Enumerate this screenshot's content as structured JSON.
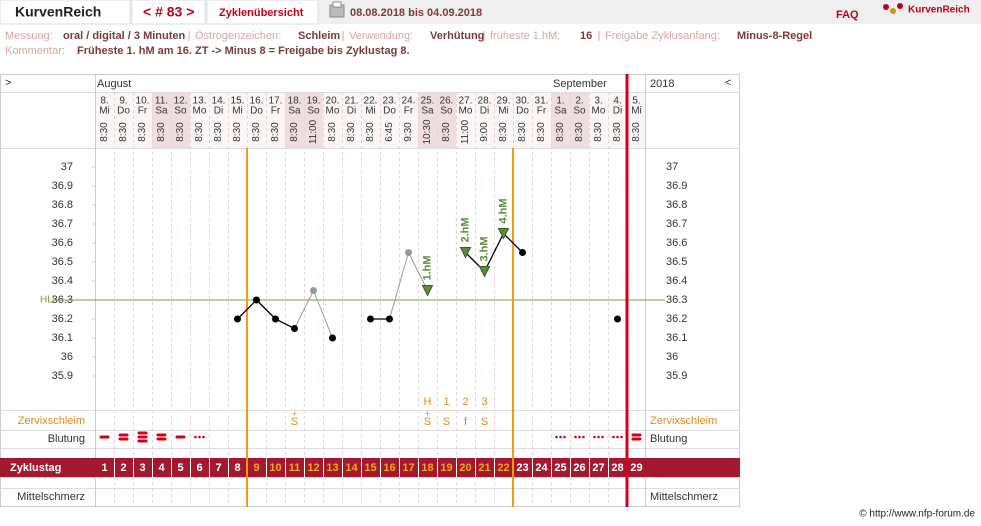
{
  "header": {
    "brand": "KurvenReich",
    "cycle_nav": "< # 83 >",
    "overview": "Zyklenübersicht",
    "date_range": "08.08.2018 bis 04.09.2018",
    "faq": "FAQ",
    "logo": "KurvenReich"
  },
  "info": {
    "fields": [
      {
        "label": "Messung:",
        "value": "oral / digital / 3 Minuten"
      },
      {
        "label": "Östrogenzeichen:",
        "value": "Schleim"
      },
      {
        "label": "Verwendung:",
        "value": "Verhütung"
      },
      {
        "label": "früheste 1.hM:",
        "value": "16"
      },
      {
        "label": "Freigabe Zyklusanfang:",
        "value": "Minus-8-Regel"
      }
    ],
    "comment": {
      "label": "Kommentar:",
      "value": "Früheste 1. hM am 16. ZT -> Minus 8 = Freigabe bis Zyklustag 8."
    }
  },
  "chart_data": {
    "type": "line",
    "scroll_left": ">",
    "scroll_right": "<",
    "year": "2018",
    "month_labels": [
      "August",
      null,
      null,
      null,
      null,
      null,
      null,
      null,
      null,
      null,
      null,
      null,
      null,
      null,
      null,
      null,
      null,
      null,
      null,
      null,
      null,
      null,
      null,
      null,
      "September",
      null,
      null,
      null,
      null
    ],
    "days": [
      "8.",
      "9.",
      "10.",
      "11.",
      "12.",
      "13.",
      "14.",
      "15.",
      "16.",
      "17.",
      "18.",
      "19.",
      "20.",
      "21.",
      "22.",
      "23.",
      "24.",
      "25.",
      "26.",
      "27.",
      "28.",
      "29.",
      "30.",
      "31.",
      "1.",
      "2.",
      "3.",
      "4.",
      "5."
    ],
    "weekdays": [
      "Mi",
      "Do",
      "Fr",
      "Sa",
      "So",
      "Mo",
      "Di",
      "Mi",
      "Do",
      "Fr",
      "Sa",
      "So",
      "Mo",
      "Di",
      "Mi",
      "Do",
      "Fr",
      "Sa",
      "So",
      "Mo",
      "Di",
      "Mi",
      "Do",
      "Fr",
      "Sa",
      "So",
      "Mo",
      "Di",
      "Mi"
    ],
    "times": [
      "8:30",
      "8:30",
      "8:30",
      "8:30",
      "8:30",
      "8:30",
      "8:30",
      "8:30",
      "8:30",
      "8:30",
      "8:30",
      "11:00",
      "8:30",
      "8:30",
      "8:30",
      "6:45",
      "9:30",
      "10:30",
      "8:30",
      "11:00",
      "9:00",
      "8:30",
      "8:30",
      "8:30",
      "8:30",
      "8:30",
      "8:30",
      "8:30",
      "8:30"
    ],
    "header_colors": [
      "#fbf5f5",
      "#fbf5f5",
      "#fbf5f5",
      "#f0dede",
      "#f0dede",
      "#fbf5f5",
      "#fbf5f5",
      "#fbf5f5",
      "#fbf5f5",
      "#fbf5f5",
      "#f0dede",
      "#f0dede",
      "#fbf5f5",
      "#fbf5f5",
      "#fbf5f5",
      "#fbf5f5",
      "#fbf5f5",
      "#f0dede",
      "#f0dede",
      "#fbf5f5",
      "#fbf5f5",
      "#fbf5f5",
      "#fbf5f5",
      "#fbf5f5",
      "#f0dede",
      "#f0dede",
      "#fbf5f5",
      "#fbf5f5",
      "#fbf5f5"
    ],
    "cycle_days": [
      1,
      2,
      3,
      4,
      5,
      6,
      7,
      8,
      9,
      10,
      11,
      12,
      13,
      14,
      15,
      16,
      17,
      18,
      19,
      20,
      21,
      22,
      23,
      24,
      25,
      26,
      27,
      28,
      29
    ],
    "values": [
      null,
      null,
      null,
      null,
      null,
      null,
      null,
      36.2,
      36.3,
      36.2,
      36.15,
      36.35,
      36.1,
      null,
      36.2,
      36.2,
      36.55,
      36.35,
      null,
      36.55,
      36.45,
      36.65,
      36.55,
      null,
      null,
      null,
      null,
      36.2,
      null
    ],
    "excluded": [
      false,
      false,
      false,
      false,
      false,
      false,
      false,
      false,
      false,
      false,
      false,
      true,
      false,
      false,
      false,
      false,
      true,
      false,
      false,
      false,
      false,
      false,
      false,
      false,
      false,
      false,
      false,
      false,
      false
    ],
    "hm_labels": [
      null,
      null,
      null,
      null,
      null,
      null,
      null,
      null,
      null,
      null,
      null,
      null,
      null,
      null,
      null,
      null,
      null,
      "1.hM",
      null,
      "2.hM",
      "3.hM",
      "4.hM",
      null,
      null,
      null,
      null,
      null,
      null,
      null
    ],
    "line_color": "#000000",
    "excluded_color": "#999999",
    "hm_color": "#5e8a3a",
    "ylim": [
      35.75,
      37.1
    ],
    "yticks": [
      35.9,
      36,
      36.1,
      36.2,
      36.3,
      36.4,
      36.5,
      36.6,
      36.7,
      36.8,
      36.9,
      37
    ],
    "hli": {
      "label": "HLi",
      "value": 36.3,
      "color": "#7a9a4a"
    },
    "count_labels": [
      null,
      null,
      null,
      null,
      null,
      null,
      null,
      null,
      null,
      null,
      null,
      null,
      null,
      null,
      null,
      null,
      null,
      "H",
      "1",
      "2",
      "3",
      null,
      null,
      null,
      null,
      null,
      null,
      null,
      null
    ],
    "cervix_plus": [
      null,
      null,
      null,
      null,
      null,
      null,
      null,
      null,
      null,
      null,
      "+",
      null,
      null,
      null,
      null,
      null,
      null,
      "+",
      null,
      null,
      null,
      null,
      null,
      null,
      null,
      null,
      null,
      null,
      null
    ],
    "cervix": [
      null,
      null,
      null,
      null,
      null,
      null,
      null,
      null,
      null,
      null,
      "S",
      null,
      null,
      null,
      null,
      null,
      null,
      "S",
      "S",
      "f",
      "S",
      null,
      null,
      null,
      null,
      null,
      null,
      null,
      null
    ],
    "bleeding": [
      1,
      2,
      3,
      2,
      1,
      0,
      null,
      null,
      null,
      null,
      null,
      null,
      null,
      null,
      null,
      null,
      null,
      null,
      null,
      null,
      null,
      null,
      null,
      null,
      0,
      0,
      0,
      0,
      2
    ],
    "row_labels": {
      "cervix": "Zervixschleim",
      "bleeding": "Blutung",
      "cycle_day": "Zyklustag",
      "pain": "Mittelschmerz"
    },
    "fertile_days": [
      9,
      22
    ],
    "cycle_end": 28
  },
  "footer": "© http://www.nfp-forum.de"
}
